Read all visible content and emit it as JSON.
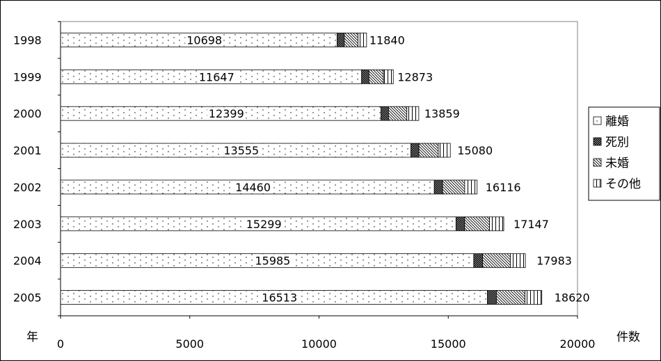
{
  "chart_data": {
    "type": "bar",
    "orientation": "horizontal",
    "stacked": true,
    "categories": [
      "1998",
      "1999",
      "2000",
      "2001",
      "2002",
      "2003",
      "2004",
      "2005"
    ],
    "series": [
      {
        "name": "離婚",
        "values": [
          10698,
          11647,
          12399,
          13555,
          14460,
          15299,
          15985,
          16513
        ],
        "pattern": "dots"
      },
      {
        "name": "死別",
        "values": [
          280,
          285,
          290,
          310,
          320,
          335,
          345,
          350
        ],
        "pattern": "dense-crosshatch"
      },
      {
        "name": "未婚",
        "values": [
          530,
          560,
          710,
          750,
          856,
          963,
          1073,
          1107
        ],
        "pattern": "diagonal"
      },
      {
        "name": "その他",
        "values": [
          332,
          381,
          460,
          465,
          480,
          550,
          580,
          650
        ],
        "pattern": "vertical"
      }
    ],
    "totals": [
      11840,
      12873,
      13859,
      15080,
      16116,
      17147,
      17983,
      18620
    ],
    "xlim": [
      0,
      20000
    ],
    "xticks": [
      "0",
      "5000",
      "10000",
      "15000",
      "20000"
    ],
    "xlabel": "件数",
    "ylabel": "年",
    "legend_position": "right",
    "grid": false
  }
}
